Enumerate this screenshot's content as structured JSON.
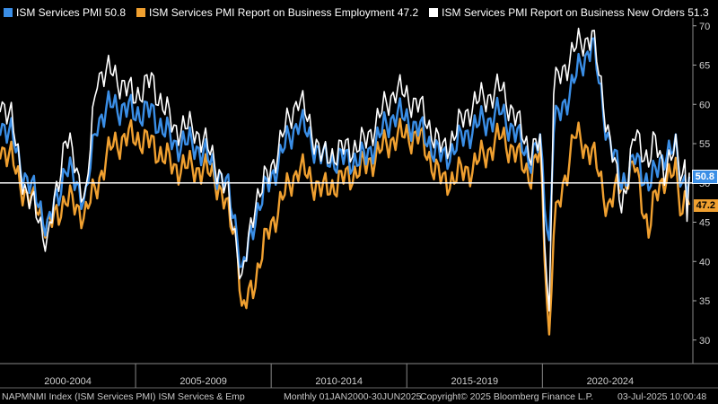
{
  "legend": [
    {
      "label": "ISM Services PMI 50.8",
      "color": "#3a8ee6"
    },
    {
      "label": "ISM Services PMI Report on Business Employment 47.2",
      "color": "#f0a030"
    },
    {
      "label": "ISM Services PMI Report on Business New Orders 51.3",
      "color": "#ffffff"
    }
  ],
  "footer": {
    "left": "NAPMNMI Index (ISM Services PMI) ISM Services & Emp",
    "mid": "Monthly 01JAN2000-30JUN2025",
    "copyright": "Copyright© 2025 Bloomberg Finance L.P.",
    "date": "03-Jul-2025 10:00:48"
  },
  "tags": {
    "pmi": "50.8",
    "employment": "47.2"
  },
  "chart_data": {
    "type": "line",
    "x_start": "2000-01",
    "x_end": "2025-06",
    "period_labels": [
      "2000-2004",
      "2005-2009",
      "2010-2014",
      "2015-2019",
      "2020-2024"
    ],
    "ylim": [
      27,
      71
    ],
    "yticks": [
      30,
      35,
      40,
      45,
      50,
      55,
      60,
      65,
      70
    ],
    "reference_line": 50,
    "series": [
      {
        "name": "ISM Services PMI",
        "color": "#3a8ee6",
        "last": 50.8,
        "keypoints": [
          [
            "2000-01",
            58
          ],
          [
            "2000-06",
            56
          ],
          [
            "2001-01",
            50
          ],
          [
            "2001-06",
            48
          ],
          [
            "2001-10",
            44
          ],
          [
            "2002-06",
            52
          ],
          [
            "2003-03",
            48
          ],
          [
            "2003-08",
            58
          ],
          [
            "2004-03",
            60
          ],
          [
            "2004-12",
            59
          ],
          [
            "2005-08",
            59
          ],
          [
            "2006-06",
            55
          ],
          [
            "2007-03",
            55
          ],
          [
            "2007-12",
            52
          ],
          [
            "2008-06",
            49
          ],
          [
            "2008-10",
            44
          ],
          [
            "2008-12",
            38
          ],
          [
            "2009-06",
            46
          ],
          [
            "2009-12",
            50
          ],
          [
            "2010-06",
            54
          ],
          [
            "2011-01",
            58
          ],
          [
            "2011-12",
            53
          ],
          [
            "2012-06",
            53
          ],
          [
            "2013-06",
            53
          ],
          [
            "2014-08",
            59
          ],
          [
            "2015-06",
            57
          ],
          [
            "2016-05",
            53
          ],
          [
            "2017-06",
            57
          ],
          [
            "2018-07",
            59
          ],
          [
            "2019-08",
            53
          ],
          [
            "2019-12",
            55
          ],
          [
            "2020-04",
            42
          ],
          [
            "2020-06",
            57
          ],
          [
            "2021-03",
            63
          ],
          [
            "2021-11",
            68
          ],
          [
            "2022-06",
            56
          ],
          [
            "2022-12",
            50
          ],
          [
            "2023-06",
            53
          ],
          [
            "2023-12",
            50
          ],
          [
            "2024-03",
            51
          ],
          [
            "2024-07",
            54
          ],
          [
            "2024-12",
            54
          ],
          [
            "2025-03",
            50
          ],
          [
            "2025-04",
            51
          ],
          [
            "2025-05",
            50
          ],
          [
            "2025-06",
            50.8
          ]
        ]
      },
      {
        "name": "ISM Services PMI Report on Business Employment",
        "color": "#f0a030",
        "last": 47.2,
        "keypoints": [
          [
            "2000-01",
            55
          ],
          [
            "2000-06",
            53
          ],
          [
            "2001-01",
            48
          ],
          [
            "2001-06",
            47
          ],
          [
            "2001-10",
            44
          ],
          [
            "2002-06",
            48
          ],
          [
            "2003-03",
            46
          ],
          [
            "2003-08",
            50
          ],
          [
            "2004-03",
            55
          ],
          [
            "2004-12",
            56
          ],
          [
            "2005-08",
            55
          ],
          [
            "2006-06",
            52
          ],
          [
            "2007-03",
            52
          ],
          [
            "2007-12",
            51
          ],
          [
            "2008-06",
            46
          ],
          [
            "2008-10",
            43
          ],
          [
            "2008-12",
            33
          ],
          [
            "2009-06",
            38
          ],
          [
            "2009-12",
            44
          ],
          [
            "2010-06",
            48
          ],
          [
            "2011-01",
            52
          ],
          [
            "2011-12",
            49
          ],
          [
            "2012-06",
            50
          ],
          [
            "2013-06",
            52
          ],
          [
            "2014-08",
            56
          ],
          [
            "2015-06",
            56
          ],
          [
            "2016-05",
            50
          ],
          [
            "2017-06",
            52
          ],
          [
            "2018-07",
            56
          ],
          [
            "2019-08",
            51
          ],
          [
            "2019-12",
            54
          ],
          [
            "2020-04",
            30
          ],
          [
            "2020-06",
            44
          ],
          [
            "2021-03",
            56
          ],
          [
            "2021-11",
            54
          ],
          [
            "2022-06",
            47
          ],
          [
            "2022-12",
            50
          ],
          [
            "2023-06",
            52
          ],
          [
            "2023-12",
            44
          ],
          [
            "2024-03",
            48
          ],
          [
            "2024-07",
            51
          ],
          [
            "2024-12",
            51
          ],
          [
            "2025-03",
            46
          ],
          [
            "2025-04",
            49
          ],
          [
            "2025-05",
            50
          ],
          [
            "2025-06",
            47.2
          ]
        ]
      },
      {
        "name": "ISM Services PMI Report on Business New Orders",
        "color": "#ffffff",
        "last": 51.3,
        "keypoints": [
          [
            "2000-01",
            61
          ],
          [
            "2000-06",
            58
          ],
          [
            "2001-01",
            48
          ],
          [
            "2001-06",
            46
          ],
          [
            "2001-10",
            42
          ],
          [
            "2002-06",
            56
          ],
          [
            "2003-03",
            48
          ],
          [
            "2003-08",
            64
          ],
          [
            "2004-03",
            64
          ],
          [
            "2004-12",
            61
          ],
          [
            "2005-08",
            63
          ],
          [
            "2006-06",
            57
          ],
          [
            "2007-03",
            57
          ],
          [
            "2007-12",
            53
          ],
          [
            "2008-06",
            48
          ],
          [
            "2008-10",
            42
          ],
          [
            "2008-12",
            37
          ],
          [
            "2009-06",
            48
          ],
          [
            "2009-12",
            51
          ],
          [
            "2010-06",
            56
          ],
          [
            "2011-01",
            61
          ],
          [
            "2011-12",
            53
          ],
          [
            "2012-06",
            54
          ],
          [
            "2013-06",
            55
          ],
          [
            "2014-08",
            62
          ],
          [
            "2015-06",
            60
          ],
          [
            "2016-05",
            54
          ],
          [
            "2017-06",
            60
          ],
          [
            "2018-07",
            62
          ],
          [
            "2019-08",
            54
          ],
          [
            "2019-12",
            55
          ],
          [
            "2020-04",
            33
          ],
          [
            "2020-06",
            62
          ],
          [
            "2021-03",
            67
          ],
          [
            "2021-11",
            69
          ],
          [
            "2022-06",
            57
          ],
          [
            "2022-12",
            47
          ],
          [
            "2023-06",
            56
          ],
          [
            "2023-12",
            53
          ],
          [
            "2024-03",
            55
          ],
          [
            "2024-07",
            52
          ],
          [
            "2024-12",
            54
          ],
          [
            "2025-03",
            51
          ],
          [
            "2025-04",
            53
          ],
          [
            "2025-05",
            47
          ],
          [
            "2025-06",
            51.3
          ]
        ]
      }
    ]
  }
}
